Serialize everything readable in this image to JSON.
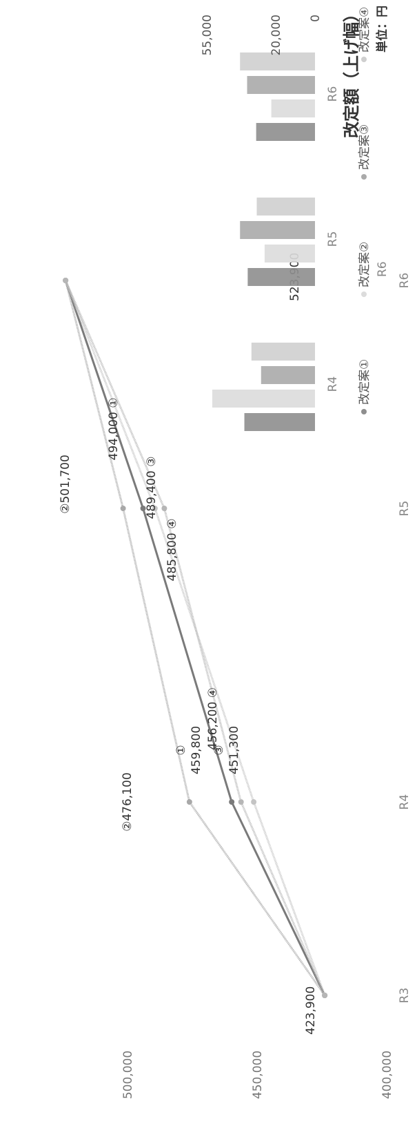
{
  "chart_data": [
    {
      "type": "line",
      "categories": [
        "R3",
        "R4",
        "R5",
        "R6"
      ],
      "ylim": [
        400000,
        530000
      ],
      "yticks": [
        "400,000",
        "450,000",
        "500,000"
      ],
      "series": [
        {
          "id": "1",
          "values": [
            423900,
            459800,
            494000,
            523900
          ],
          "labels": [
            "423,900",
            "459,800 ①",
            "494,000 ①",
            "523,900"
          ]
        },
        {
          "id": "2",
          "values": [
            423900,
            476100,
            501700,
            523900
          ],
          "labels": [
            "",
            "②476,100",
            "②501,700",
            ""
          ]
        },
        {
          "id": "3",
          "values": [
            423900,
            451300,
            489400,
            523900
          ],
          "labels": [
            "",
            "451,300 ③",
            "489,400 ③",
            ""
          ]
        },
        {
          "id": "4",
          "values": [
            423900,
            456200,
            485800,
            523900
          ],
          "labels": [
            "",
            "456,200 ④",
            "485,800 ④",
            ""
          ]
        }
      ],
      "colors": [
        "#7a7a7a",
        "#a8a8a8",
        "#c4c4c4",
        "#b6b6b6"
      ]
    },
    {
      "type": "bar",
      "title": "改定額（上げ幅）",
      "unit_label": "単位：円",
      "categories": [
        "R4",
        "R5",
        "R6"
      ],
      "yticks": [
        "0",
        "20,000",
        "55,000"
      ],
      "ylim": [
        0,
        55000
      ],
      "series": [
        {
          "name": "改定案①",
          "values": [
            35900,
            34200,
            29900
          ]
        },
        {
          "name": "改定案②",
          "values": [
            52200,
            25600,
            22200
          ]
        },
        {
          "name": "改定案③",
          "values": [
            27400,
            38100,
            34500
          ]
        },
        {
          "name": "改定案④",
          "values": [
            32300,
            29600,
            38100
          ]
        }
      ],
      "legend": [
        "改定案①",
        "改定案②",
        "改定案③",
        "改定案④"
      ],
      "colors": [
        "#8e8e8e",
        "#dcdcdc",
        "#aaaaaa",
        "#cfcfcf"
      ]
    }
  ],
  "footer_label": "R6"
}
